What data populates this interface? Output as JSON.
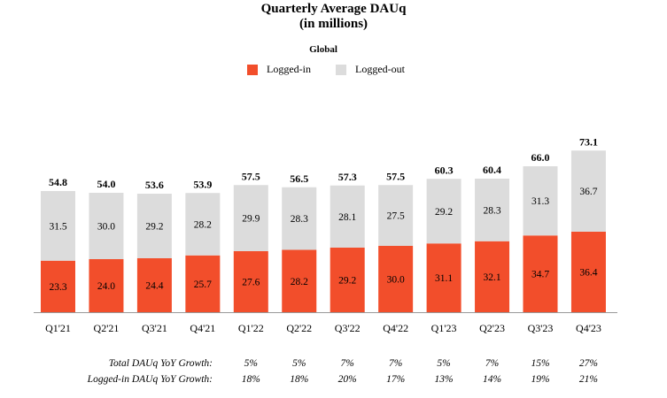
{
  "chart_data": {
    "type": "bar",
    "stacked": true,
    "title": "Quarterly Average DAUq",
    "subtitle": "(in millions)",
    "region": "Global",
    "categories": [
      "Q1'21",
      "Q2'21",
      "Q3'21",
      "Q4'21",
      "Q1'22",
      "Q2'22",
      "Q3'22",
      "Q4'22",
      "Q1'23",
      "Q2'23",
      "Q3'23",
      "Q4'23"
    ],
    "series": [
      {
        "name": "Logged-in",
        "color": "#f24e2b",
        "values": [
          23.3,
          24.0,
          24.4,
          25.7,
          27.6,
          28.2,
          29.2,
          30.0,
          31.1,
          32.1,
          34.7,
          36.4
        ]
      },
      {
        "name": "Logged-out",
        "color": "#dcdcdc",
        "values": [
          31.5,
          30.0,
          29.2,
          28.2,
          29.9,
          28.3,
          28.1,
          27.5,
          29.2,
          28.3,
          31.3,
          36.7
        ]
      }
    ],
    "totals": [
      "54.8",
      "54.0",
      "53.6",
      "53.9",
      "57.5",
      "56.5",
      "57.3",
      "57.5",
      "60.3",
      "60.4",
      "66.0",
      "73.1"
    ],
    "segment_labels": {
      "logged_in": [
        "23.3",
        "24.0",
        "24.4",
        "25.7",
        "27.6",
        "28.2",
        "29.2",
        "30.0",
        "31.1",
        "32.1",
        "34.7",
        "36.4"
      ],
      "logged_out": [
        "31.5",
        "30.0",
        "29.2",
        "28.2",
        "29.9",
        "28.3",
        "28.1",
        "27.5",
        "29.2",
        "28.3",
        "31.3",
        "36.7"
      ]
    },
    "legend_position": "top-center",
    "grid": false,
    "ylim": [
      0,
      80
    ]
  },
  "growth_table": {
    "total_label": "Total DAUq YoY Growth:",
    "total_values": [
      "5%",
      "5%",
      "7%",
      "7%",
      "5%",
      "7%",
      "15%",
      "27%"
    ],
    "loggedin_label": "Logged-in DAUq YoY Growth:",
    "loggedin_values": [
      "18%",
      "18%",
      "20%",
      "17%",
      "13%",
      "14%",
      "19%",
      "21%"
    ]
  },
  "colors": {
    "logged_in": "#f24e2b",
    "logged_out": "#dcdcdc",
    "axis": "#999999"
  }
}
